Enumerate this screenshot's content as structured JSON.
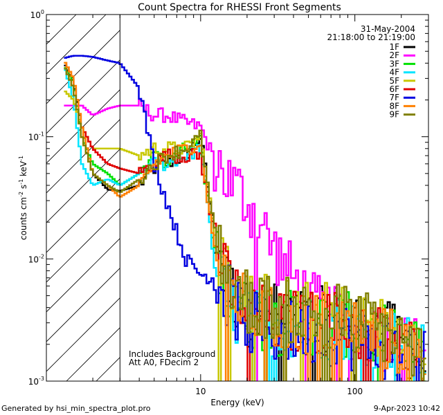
{
  "chart_data": {
    "type": "line",
    "title": "Count Spectra for RHESSI Front Segments",
    "xlabel": "Energy (keV)",
    "ylabel_parts": {
      "pre": "counts cm",
      "sup1": "-2",
      "mid1": " s",
      "sup2": "-1",
      "mid2": " keV",
      "sup3": "-1"
    },
    "xscale": "log",
    "yscale": "log",
    "xlim": [
      1,
      300
    ],
    "ylim": [
      0.001,
      1
    ],
    "x_ticks": [
      {
        "value": 10,
        "label": "10"
      },
      {
        "value": 100,
        "label": "100"
      }
    ],
    "y_ticks": [
      {
        "value": 1,
        "base": "10",
        "exp": "0"
      },
      {
        "value": 0.1,
        "base": "10",
        "exp": "-1"
      },
      {
        "value": 0.01,
        "base": "10",
        "exp": "-2"
      },
      {
        "value": 0.001,
        "base": "10",
        "exp": "-3"
      }
    ],
    "date": "31-May-2004",
    "time_range": "21:18:00 to 21:19:00",
    "attenuator_cutoff_keV": 3,
    "annotations": [
      "Includes Background",
      "Att A0, FDecim 2"
    ],
    "footer_left": "Generated by hsi_min_spectra_plot.pro",
    "footer_right": "9-Apr-2023 10:42",
    "legend_position": "top-right",
    "series": [
      {
        "name": "1F",
        "color": "#000000"
      },
      {
        "name": "2F",
        "color": "#ff00ff"
      },
      {
        "name": "3F",
        "color": "#00e000"
      },
      {
        "name": "4F",
        "color": "#00e5ff"
      },
      {
        "name": "5F",
        "color": "#c8c800"
      },
      {
        "name": "6F",
        "color": "#e00000"
      },
      {
        "name": "7F",
        "color": "#0000e0"
      },
      {
        "name": "8F",
        "color": "#ff8000"
      },
      {
        "name": "9F",
        "color": "#808000"
      }
    ],
    "shape_points": {
      "x": [
        1.3,
        1.5,
        1.7,
        2.0,
        2.5,
        3.0,
        4.0,
        5.0,
        6.0,
        8.0,
        10.0,
        12.0,
        15.0,
        20.0,
        30.0,
        50.0,
        80.0,
        120.0,
        200.0,
        290.0
      ],
      "series_y": {
        "1F": [
          0.4,
          0.28,
          0.12,
          0.05,
          0.037,
          0.036,
          0.04,
          0.055,
          0.06,
          0.07,
          0.1,
          0.02,
          0.006,
          0.0035,
          0.0035,
          0.003,
          0.0035,
          0.0028,
          0.0022,
          0.0015
        ],
        "2F": [
          0.18,
          0.18,
          0.18,
          0.15,
          0.17,
          0.18,
          0.18,
          0.15,
          0.15,
          0.13,
          0.12,
          0.07,
          0.045,
          0.03,
          0.012,
          0.0045,
          0.003,
          0.0025,
          0.002,
          0.0018
        ],
        "3F": [
          0.38,
          0.28,
          0.1,
          0.06,
          0.05,
          0.04,
          0.05,
          0.07,
          0.06,
          0.08,
          0.09,
          0.015,
          0.005,
          0.0035,
          0.003,
          0.003,
          0.003,
          0.0025,
          0.002,
          0.0015
        ],
        "4F": [
          0.38,
          0.2,
          0.06,
          0.04,
          0.045,
          0.04,
          0.05,
          0.06,
          0.06,
          0.07,
          0.08,
          0.012,
          0.004,
          0.003,
          0.003,
          0.0028,
          0.0028,
          0.0025,
          0.002,
          0.0015
        ],
        "5F": [
          0.24,
          0.2,
          0.12,
          0.08,
          0.08,
          0.08,
          0.07,
          0.08,
          0.08,
          0.08,
          0.1,
          0.02,
          0.007,
          0.0045,
          0.004,
          0.0035,
          0.0035,
          0.003,
          0.0022,
          0.0015
        ],
        "6F": [
          0.42,
          0.3,
          0.12,
          0.08,
          0.06,
          0.055,
          0.05,
          0.06,
          0.07,
          0.07,
          0.07,
          0.018,
          0.006,
          0.004,
          0.003,
          0.003,
          0.003,
          0.0025,
          0.002,
          0.0015
        ],
        "7F": [
          0.44,
          0.46,
          0.46,
          0.45,
          0.42,
          0.4,
          0.25,
          0.06,
          0.03,
          0.01,
          0.0075,
          0.007,
          0.005,
          0.003,
          0.0025,
          0.0025,
          0.0025,
          0.002,
          0.0018,
          0.0015
        ],
        "8F": [
          0.42,
          0.3,
          0.12,
          0.05,
          0.04,
          0.032,
          0.04,
          0.06,
          0.07,
          0.08,
          0.09,
          0.015,
          0.006,
          0.004,
          0.003,
          0.003,
          0.003,
          0.0025,
          0.002,
          0.0015
        ],
        "9F": [
          0.38,
          0.25,
          0.1,
          0.05,
          0.04,
          0.035,
          0.045,
          0.06,
          0.07,
          0.08,
          0.1,
          0.02,
          0.007,
          0.0045,
          0.004,
          0.0035,
          0.0035,
          0.003,
          0.0022,
          0.0015
        ]
      }
    }
  }
}
